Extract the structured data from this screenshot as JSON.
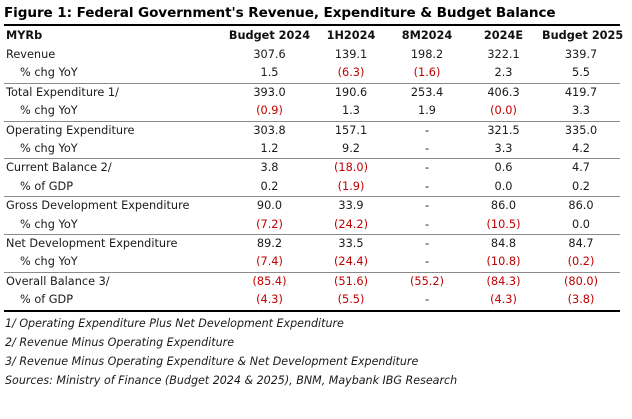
{
  "title": "Figure 1: Federal Government's Revenue, Expenditure & Budget Balance",
  "columns": [
    "MYRb",
    "Budget 2024",
    "1H2024",
    "8M2024",
    "2024E",
    "Budget 2025"
  ],
  "rows": [
    {
      "label": "Revenue",
      "sub": false,
      "sep": false,
      "values": [
        "307.6",
        "139.1",
        "198.2",
        "322.1",
        "339.7"
      ],
      "neg": [
        false,
        false,
        false,
        false,
        false
      ]
    },
    {
      "label": "% chg YoY",
      "sub": true,
      "sep": false,
      "values": [
        "1.5",
        "(6.3)",
        "(1.6)",
        "2.3",
        "5.5"
      ],
      "neg": [
        false,
        true,
        true,
        false,
        false
      ]
    },
    {
      "label": "Total Expenditure 1/",
      "sub": false,
      "sep": true,
      "values": [
        "393.0",
        "190.6",
        "253.4",
        "406.3",
        "419.7"
      ],
      "neg": [
        false,
        false,
        false,
        false,
        false
      ]
    },
    {
      "label": "% chg YoY",
      "sub": true,
      "sep": false,
      "values": [
        "(0.9)",
        "1.3",
        "1.9",
        "(0.0)",
        "3.3"
      ],
      "neg": [
        true,
        false,
        false,
        true,
        false
      ]
    },
    {
      "label": "Operating Expenditure",
      "sub": false,
      "sep": true,
      "values": [
        "303.8",
        "157.1",
        "-",
        "321.5",
        "335.0"
      ],
      "neg": [
        false,
        false,
        false,
        false,
        false
      ]
    },
    {
      "label": "% chg YoY",
      "sub": true,
      "sep": false,
      "values": [
        "1.2",
        "9.2",
        "-",
        "3.3",
        "4.2"
      ],
      "neg": [
        false,
        false,
        false,
        false,
        false
      ]
    },
    {
      "label": "Current Balance 2/",
      "sub": false,
      "sep": true,
      "values": [
        "3.8",
        "(18.0)",
        "-",
        "0.6",
        "4.7"
      ],
      "neg": [
        false,
        true,
        false,
        false,
        false
      ]
    },
    {
      "label": "% of GDP",
      "sub": true,
      "sep": false,
      "values": [
        "0.2",
        "(1.9)",
        "-",
        "0.0",
        "0.2"
      ],
      "neg": [
        false,
        true,
        false,
        false,
        false
      ]
    },
    {
      "label": "Gross Development Expenditure",
      "sub": false,
      "sep": true,
      "values": [
        "90.0",
        "33.9",
        "-",
        "86.0",
        "86.0"
      ],
      "neg": [
        false,
        false,
        false,
        false,
        false
      ]
    },
    {
      "label": "% chg YoY",
      "sub": true,
      "sep": false,
      "values": [
        "(7.2)",
        "(24.2)",
        "-",
        "(10.5)",
        "0.0"
      ],
      "neg": [
        true,
        true,
        false,
        true,
        false
      ]
    },
    {
      "label": "Net Development Expenditure",
      "sub": false,
      "sep": true,
      "values": [
        "89.2",
        "33.5",
        "-",
        "84.8",
        "84.7"
      ],
      "neg": [
        false,
        false,
        false,
        false,
        false
      ]
    },
    {
      "label": "% chg YoY",
      "sub": true,
      "sep": false,
      "values": [
        "(7.4)",
        "(24.4)",
        "-",
        "(10.8)",
        "(0.2)"
      ],
      "neg": [
        true,
        true,
        false,
        true,
        true
      ]
    },
    {
      "label": "Overall Balance 3/",
      "sub": false,
      "sep": true,
      "values": [
        "(85.4)",
        "(51.6)",
        "(55.2)",
        "(84.3)",
        "(80.0)"
      ],
      "neg": [
        true,
        true,
        true,
        true,
        true
      ]
    },
    {
      "label": "% of GDP",
      "sub": true,
      "sep": false,
      "values": [
        "(4.3)",
        "(5.5)",
        "-",
        "(4.3)",
        "(3.8)"
      ],
      "neg": [
        true,
        true,
        false,
        true,
        true
      ]
    }
  ],
  "notes": [
    "1/ Operating Expenditure Plus Net Development Expenditure",
    "2/ Revenue Minus Operating Expenditure",
    "3/ Revenue Minus Operating Expenditure & Net Development Expenditure",
    "Sources: Ministry of Finance (Budget 2024 & 2025), BNM, Maybank IBG Research"
  ],
  "colors": {
    "negative": "#c00000",
    "text": "#1a1a1a",
    "rule": "#000000",
    "separator": "#8a8a8a"
  }
}
